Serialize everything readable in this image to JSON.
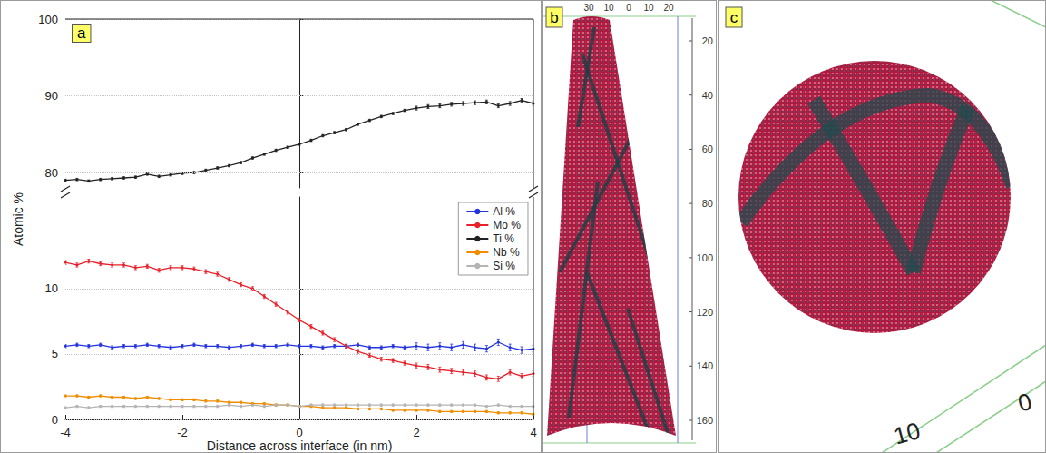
{
  "chart_data": {
    "type": "line",
    "panel_label": "a",
    "x_label": "Distance across interface (in nm)",
    "y_label": "Atomic %",
    "x": [
      -4,
      -3.8,
      -3.6,
      -3.4,
      -3.2,
      -3,
      -2.8,
      -2.6,
      -2.4,
      -2.2,
      -2,
      -1.8,
      -1.6,
      -1.4,
      -1.2,
      -1,
      -0.8,
      -0.6,
      -0.4,
      -0.2,
      0,
      0.2,
      0.4,
      0.6,
      0.8,
      1,
      1.2,
      1.4,
      1.6,
      1.8,
      2,
      2.2,
      2.4,
      2.6,
      2.8,
      3,
      3.2,
      3.4,
      3.6,
      3.8,
      4
    ],
    "xlim": [
      -4,
      4
    ],
    "xticks": [
      -4,
      -2,
      0,
      2,
      4
    ],
    "ylim": [
      0,
      17
    ],
    "yticks": [
      0,
      5,
      10
    ],
    "y2lim": [
      78,
      100
    ],
    "y2ticks": [
      80,
      90,
      100
    ],
    "grid": true,
    "legend": "upper right",
    "marker": "circle",
    "series": [
      {
        "name": "Al %",
        "color": "#2233dd",
        "values": [
          5.6,
          5.7,
          5.6,
          5.7,
          5.5,
          5.6,
          5.6,
          5.7,
          5.6,
          5.5,
          5.6,
          5.7,
          5.6,
          5.6,
          5.5,
          5.6,
          5.7,
          5.6,
          5.6,
          5.7,
          5.6,
          5.6,
          5.5,
          5.6,
          5.6,
          5.7,
          5.5,
          5.5,
          5.6,
          5.5,
          5.6,
          5.5,
          5.6,
          5.5,
          5.7,
          5.5,
          5.4,
          5.9,
          5.5,
          5.3,
          5.4
        ],
        "errors": [
          0.12,
          0.12,
          0.12,
          0.12,
          0.12,
          0.12,
          0.12,
          0.12,
          0.12,
          0.12,
          0.12,
          0.12,
          0.12,
          0.12,
          0.12,
          0.12,
          0.12,
          0.12,
          0.12,
          0.12,
          0.12,
          0.12,
          0.12,
          0.12,
          0.12,
          0.12,
          0.12,
          0.12,
          0.12,
          0.12,
          0.25,
          0.25,
          0.25,
          0.25,
          0.25,
          0.25,
          0.25,
          0.25,
          0.25,
          0.25,
          0.25
        ]
      },
      {
        "name": "Mo %",
        "color": "#e8202a",
        "values": [
          12.0,
          11.8,
          12.1,
          11.9,
          11.8,
          11.8,
          11.6,
          11.7,
          11.4,
          11.6,
          11.6,
          11.5,
          11.3,
          11.1,
          10.7,
          10.3,
          10.0,
          9.4,
          8.8,
          8.2,
          7.6,
          7.1,
          6.6,
          6.1,
          5.6,
          5.2,
          4.9,
          4.6,
          4.5,
          4.3,
          4.1,
          4.0,
          3.8,
          3.7,
          3.6,
          3.5,
          3.2,
          3.1,
          3.6,
          3.3,
          3.5
        ],
        "errors": [
          0.15,
          0.15,
          0.15,
          0.15,
          0.15,
          0.15,
          0.15,
          0.15,
          0.15,
          0.15,
          0.15,
          0.15,
          0.15,
          0.15,
          0.15,
          0.15,
          0.15,
          0.15,
          0.15,
          0.15,
          0.15,
          0.15,
          0.15,
          0.15,
          0.15,
          0.15,
          0.15,
          0.15,
          0.15,
          0.15,
          0.2,
          0.2,
          0.2,
          0.2,
          0.2,
          0.2,
          0.2,
          0.2,
          0.2,
          0.2,
          0.2
        ]
      },
      {
        "name": "Ti %",
        "color": "#222222",
        "axis": "y2",
        "values": [
          79.0,
          79.1,
          78.9,
          79.1,
          79.2,
          79.3,
          79.4,
          79.8,
          79.5,
          79.7,
          79.9,
          80.0,
          80.3,
          80.6,
          80.9,
          81.3,
          81.9,
          82.4,
          82.9,
          83.3,
          83.7,
          84.2,
          84.8,
          85.2,
          85.6,
          86.3,
          86.8,
          87.3,
          87.7,
          88.1,
          88.4,
          88.6,
          88.7,
          88.9,
          89.0,
          89.1,
          89.2,
          88.7,
          89.0,
          89.4,
          89.0
        ],
        "errors": [
          0.15,
          0.15,
          0.15,
          0.15,
          0.15,
          0.15,
          0.15,
          0.15,
          0.15,
          0.15,
          0.15,
          0.15,
          0.15,
          0.15,
          0.15,
          0.15,
          0.15,
          0.15,
          0.15,
          0.15,
          0.15,
          0.15,
          0.15,
          0.15,
          0.15,
          0.15,
          0.15,
          0.15,
          0.15,
          0.15,
          0.25,
          0.25,
          0.25,
          0.25,
          0.25,
          0.25,
          0.25,
          0.25,
          0.25,
          0.25,
          0.25
        ]
      },
      {
        "name": "Nb %",
        "color": "#f08c00",
        "values": [
          1.8,
          1.8,
          1.7,
          1.8,
          1.7,
          1.7,
          1.6,
          1.7,
          1.6,
          1.5,
          1.5,
          1.5,
          1.4,
          1.4,
          1.3,
          1.3,
          1.2,
          1.2,
          1.1,
          1.1,
          1.0,
          1.0,
          0.9,
          0.9,
          0.9,
          0.8,
          0.8,
          0.8,
          0.7,
          0.7,
          0.7,
          0.7,
          0.6,
          0.6,
          0.6,
          0.6,
          0.6,
          0.5,
          0.5,
          0.5,
          0.4
        ],
        "errors": [
          0.08,
          0.08,
          0.08,
          0.08,
          0.08,
          0.08,
          0.08,
          0.08,
          0.08,
          0.08,
          0.08,
          0.08,
          0.08,
          0.08,
          0.08,
          0.08,
          0.08,
          0.08,
          0.08,
          0.08,
          0.08,
          0.08,
          0.08,
          0.08,
          0.08,
          0.08,
          0.08,
          0.08,
          0.08,
          0.08,
          0.08,
          0.08,
          0.08,
          0.08,
          0.08,
          0.08,
          0.08,
          0.08,
          0.08,
          0.08,
          0.08
        ]
      },
      {
        "name": "Si %",
        "color": "#b4b4b4",
        "values": [
          0.9,
          1.0,
          0.9,
          1.0,
          1.0,
          1.0,
          1.0,
          1.0,
          1.0,
          1.0,
          1.0,
          1.0,
          1.0,
          1.0,
          1.1,
          1.0,
          1.1,
          1.0,
          1.1,
          1.1,
          1.0,
          1.1,
          1.1,
          1.1,
          1.1,
          1.1,
          1.1,
          1.1,
          1.1,
          1.1,
          1.1,
          1.1,
          1.1,
          1.1,
          1.1,
          1.1,
          1.0,
          1.1,
          1.0,
          1.0,
          1.0
        ],
        "errors": [
          0.08,
          0.08,
          0.08,
          0.08,
          0.08,
          0.08,
          0.08,
          0.08,
          0.08,
          0.08,
          0.08,
          0.08,
          0.08,
          0.08,
          0.08,
          0.08,
          0.08,
          0.08,
          0.08,
          0.08,
          0.08,
          0.08,
          0.08,
          0.08,
          0.08,
          0.08,
          0.08,
          0.08,
          0.08,
          0.08,
          0.08,
          0.08,
          0.08,
          0.08,
          0.08,
          0.08,
          0.08,
          0.08,
          0.08,
          0.08,
          0.08
        ]
      }
    ]
  },
  "images": [
    {
      "panel_label": "b",
      "depth_ticks": [
        20,
        40,
        60,
        80,
        100,
        120,
        140,
        160
      ],
      "top_ticks": [
        30,
        10,
        0,
        10,
        20
      ]
    },
    {
      "panel_label": "c",
      "ticks": [
        10,
        0
      ]
    }
  ]
}
